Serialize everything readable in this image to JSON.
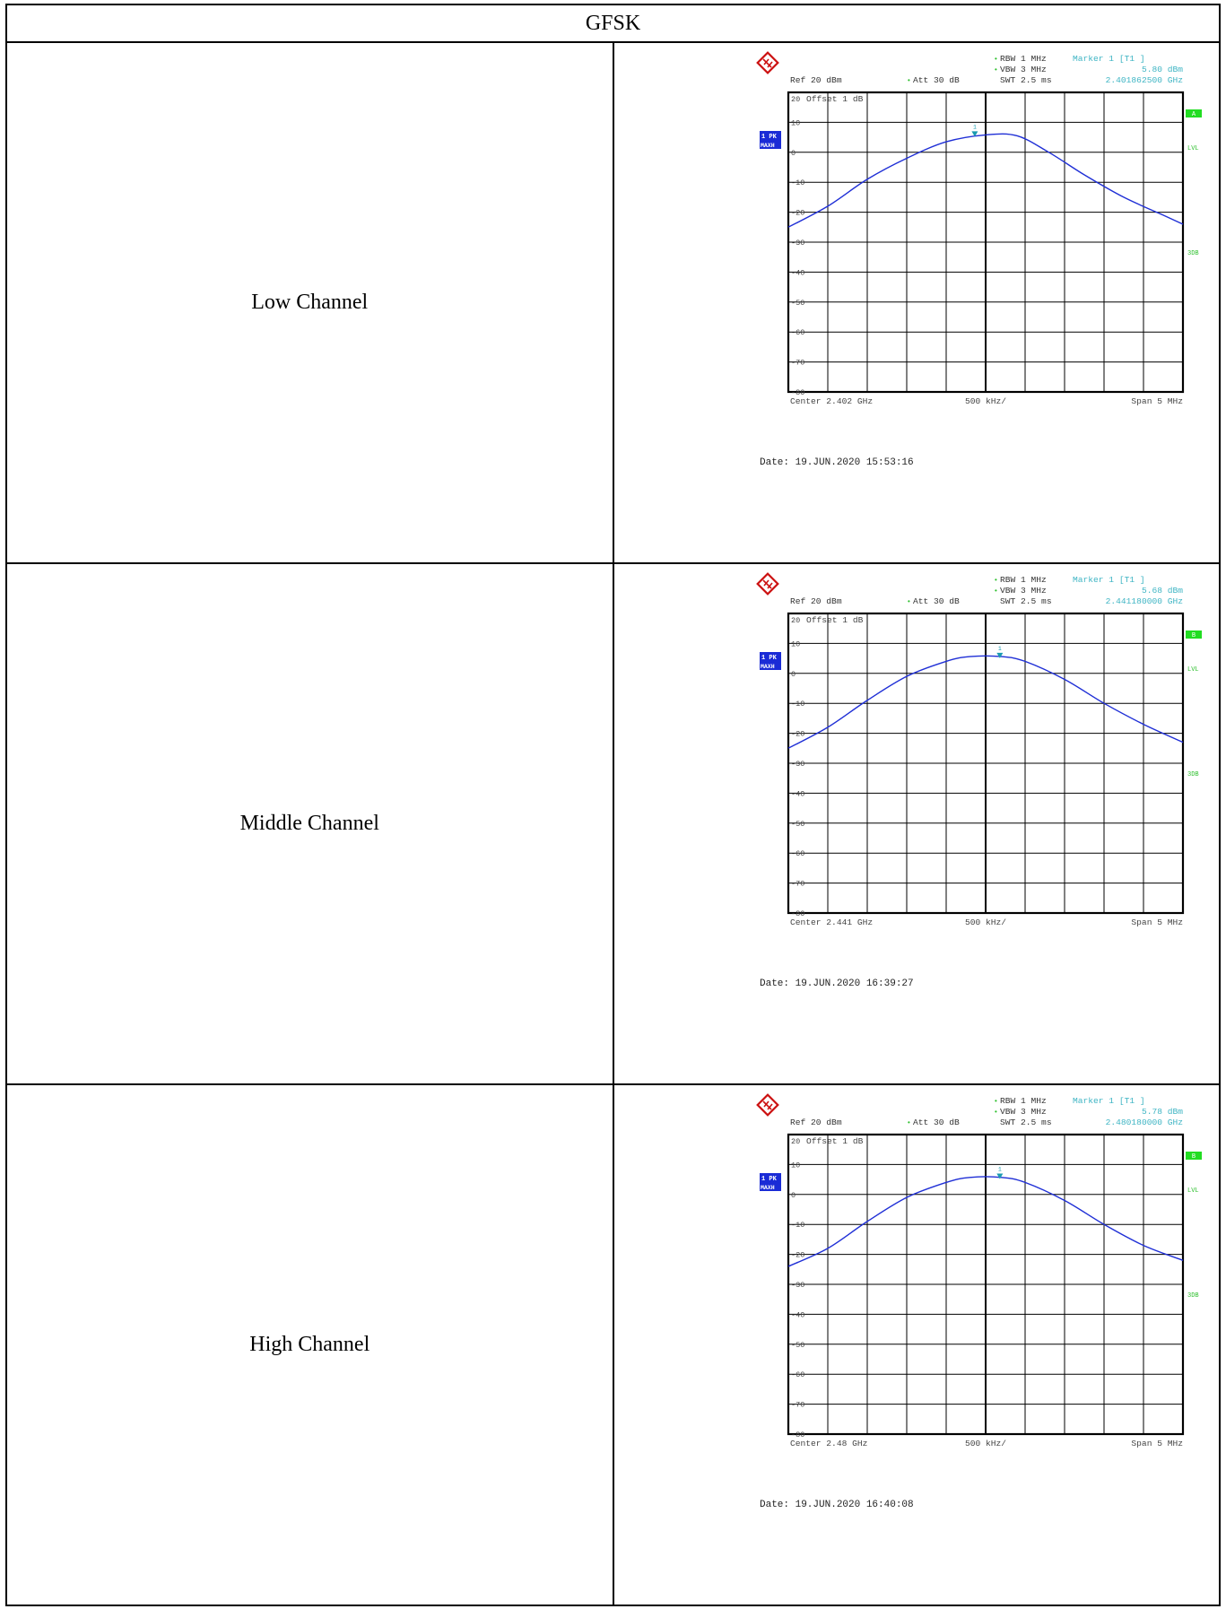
{
  "table": {
    "header": "GFSK",
    "rows": [
      {
        "label": "Low Channel",
        "plot": {
          "rbw": "RBW 1 MHz",
          "vbw": "VBW 3 MHz",
          "swt": "SWT 2.5 ms",
          "ref": "Ref  20 dBm",
          "att": "Att  30 dB",
          "offset": "Offset  1 dB",
          "marker_title": "Marker 1 [T1 ]",
          "marker_level": "5.80 dBm",
          "marker_freq": "2.401862500 GHz",
          "trace_label": "1 PK",
          "trace_mode": "MAXH",
          "side_a": "A",
          "side_lvl": "LVL",
          "side_3db": "3DB",
          "center": "Center 2.402 GHz",
          "div": "500 kHz/",
          "span": "Span 5 MHz",
          "date": "Date: 19.JUN.2020  15:53:16"
        },
        "chart_data": {
          "type": "line",
          "xlabel": "",
          "ylabel": "",
          "x_unit": "MHz offset from center",
          "xlim": [
            -2.5,
            2.5
          ],
          "ylim": [
            -80,
            20
          ],
          "yticks": [
            "20",
            "10",
            "0",
            "-10",
            "-20",
            "-30",
            "-40",
            "-50",
            "-60",
            "-70",
            "-80"
          ],
          "series": [
            {
              "x": [
                -2.5,
                -2.0,
                -1.5,
                -1.0,
                -0.5,
                0.0,
                0.4,
                0.8,
                1.25,
                1.75,
                2.25,
                2.5
              ],
              "y": [
                -25,
                -18,
                -9,
                -2,
                3.5,
                5.8,
                5.5,
                0,
                -7.5,
                -15,
                -21,
                -24
              ]
            }
          ],
          "marker": {
            "x": -0.1375,
            "y": 5.8
          }
        }
      },
      {
        "label": "Middle Channel",
        "plot": {
          "rbw": "RBW 1 MHz",
          "vbw": "VBW 3 MHz",
          "swt": "SWT 2.5 ms",
          "ref": "Ref  20 dBm",
          "att": "Att  30 dB",
          "offset": "Offset  1 dB",
          "marker_title": "Marker 1 [T1 ]",
          "marker_level": "5.68 dBm",
          "marker_freq": "2.441180000 GHz",
          "trace_label": "1 PK",
          "trace_mode": "MAXH",
          "side_a": "B",
          "side_lvl": "LVL",
          "side_3db": "3DB",
          "center": "Center 2.441 GHz",
          "div": "500 kHz/",
          "span": "Span 5 MHz",
          "date": "Date: 19.JUN.2020  16:39:27"
        },
        "chart_data": {
          "type": "line",
          "xlabel": "",
          "ylabel": "",
          "x_unit": "MHz offset from center",
          "xlim": [
            -2.5,
            2.5
          ],
          "ylim": [
            -80,
            20
          ],
          "yticks": [
            "20",
            "10",
            "0",
            "-10",
            "-20",
            "-30",
            "-40",
            "-50",
            "-60",
            "-70",
            "-80"
          ],
          "series": [
            {
              "x": [
                -2.5,
                -2.0,
                -1.5,
                -1.0,
                -0.5,
                -0.2,
                0.2,
                0.5,
                1.0,
                1.5,
                2.0,
                2.5
              ],
              "y": [
                -25,
                -18,
                -9,
                -1,
                4,
                5.6,
                5.6,
                4,
                -2,
                -10,
                -17,
                -23
              ]
            }
          ],
          "marker": {
            "x": 0.18,
            "y": 5.68
          }
        }
      },
      {
        "label": "High Channel",
        "plot": {
          "rbw": "RBW 1 MHz",
          "vbw": "VBW 3 MHz",
          "swt": "SWT 2.5 ms",
          "ref": "Ref  20 dBm",
          "att": "Att  30 dB",
          "offset": "Offset  1 dB",
          "marker_title": "Marker 1 [T1 ]",
          "marker_level": "5.78 dBm",
          "marker_freq": "2.480180000 GHz",
          "trace_label": "1 PK",
          "trace_mode": "MAXH",
          "side_a": "B",
          "side_lvl": "LVL",
          "side_3db": "3DB",
          "center": "Center 2.48 GHz",
          "div": "500 kHz/",
          "span": "Span 5 MHz",
          "date": "Date: 19.JUN.2020  16:40:08"
        },
        "chart_data": {
          "type": "line",
          "xlabel": "",
          "ylabel": "",
          "x_unit": "MHz offset from center",
          "xlim": [
            -2.5,
            2.5
          ],
          "ylim": [
            -80,
            20
          ],
          "yticks": [
            "20",
            "10",
            "0",
            "-10",
            "-20",
            "-30",
            "-40",
            "-50",
            "-60",
            "-70",
            "-80"
          ],
          "series": [
            {
              "x": [
                -2.5,
                -2.0,
                -1.5,
                -1.0,
                -0.5,
                -0.2,
                0.2,
                0.5,
                1.0,
                1.5,
                2.0,
                2.5
              ],
              "y": [
                -24,
                -18,
                -9,
                -1,
                4,
                5.7,
                5.7,
                4,
                -2,
                -10,
                -17,
                -22
              ]
            }
          ],
          "marker": {
            "x": 0.18,
            "y": 5.78
          }
        }
      }
    ]
  },
  "colors": {
    "trace": "#1f2fd6",
    "marker": "#1a9bb0",
    "info_cyan": "#3fb5c4",
    "green_badge": "#22dd22",
    "green_text": "#2cbf2c",
    "blue_badge": "#1a2bd6",
    "logo_red": "#cc1111",
    "grid": "#000000"
  },
  "icons": {
    "logo": "rohde-schwarz-logo-icon"
  }
}
